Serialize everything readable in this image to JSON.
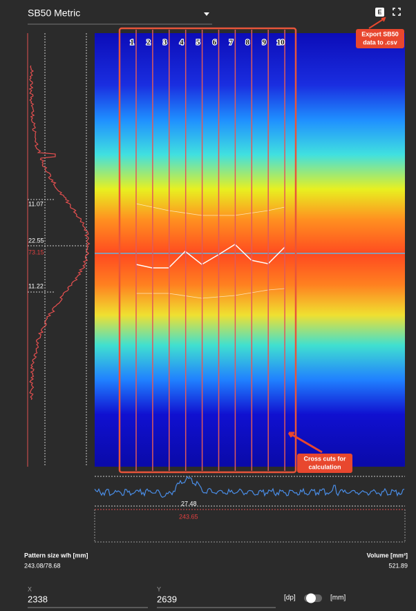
{
  "header": {
    "title": "SB50 Metric",
    "export_button": "E"
  },
  "annotations": {
    "export": [
      "Export SB50",
      "data to .csv"
    ],
    "cross_cuts": [
      "Cross cuts for",
      "calculation"
    ]
  },
  "cuts": {
    "labels": [
      "1",
      "2",
      "3",
      "4",
      "5",
      "6",
      "7",
      "8",
      "9",
      "10"
    ]
  },
  "left_profile": {
    "labels": [
      "11.07",
      "22.55",
      "73.15",
      "11.22"
    ]
  },
  "bottom_profile": {
    "labels": [
      "27.48",
      "243.65"
    ]
  },
  "stats": {
    "pattern_label": "Pattern size w/h [mm]",
    "pattern_value": "243.08/78.68",
    "volume_label": "Volume [mm³]",
    "volume_value": "521.89"
  },
  "inputs": {
    "x_label": "X",
    "x_value": "2338",
    "y_label": "Y",
    "y_value": "2639",
    "unit_left": "[dp]",
    "unit_right": "[mm]"
  }
}
